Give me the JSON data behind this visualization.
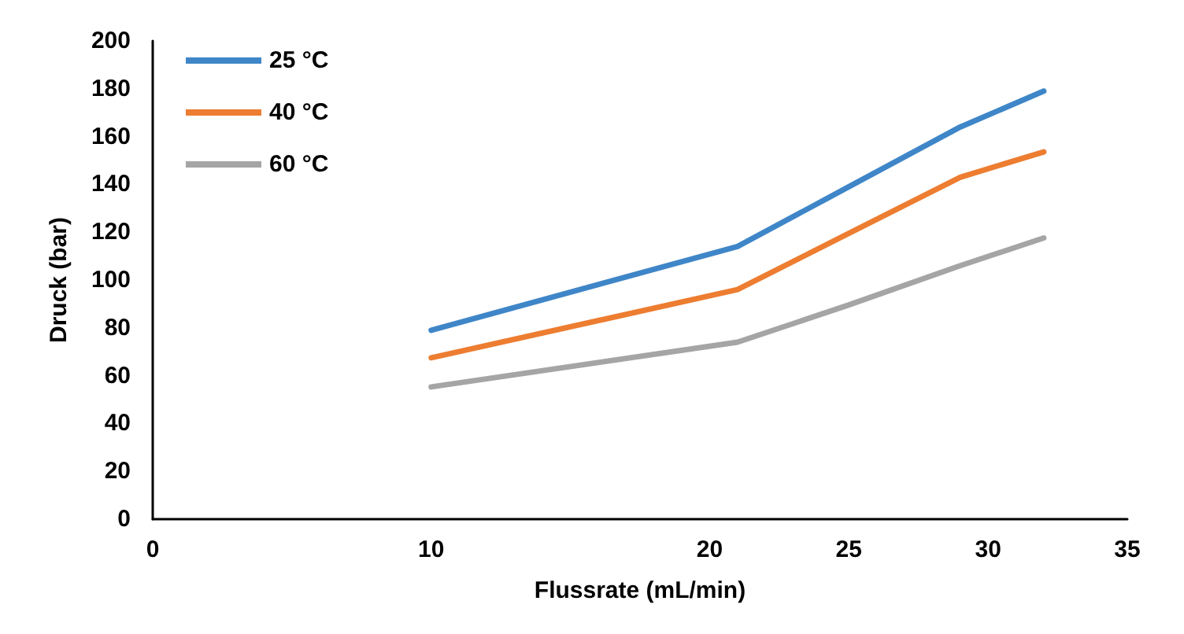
{
  "chart_data": {
    "type": "line",
    "xlabel": "Flussrate (mL/min)",
    "ylabel": "Druck (bar)",
    "x": [
      10,
      21,
      25,
      29,
      32
    ],
    "series": [
      {
        "name": "25 °C",
        "color": "#3f86c8",
        "values": [
          79,
          114,
          139,
          164,
          179
        ]
      },
      {
        "name": "40 °C",
        "color": "#ed7d31",
        "values": [
          67.5,
          96,
          119.5,
          143,
          153.6
        ]
      },
      {
        "name": "60 °C",
        "color": "#a5a5a5",
        "values": [
          55.3,
          74,
          89.6,
          106,
          117.6
        ]
      }
    ],
    "xlim": [
      0,
      35
    ],
    "xticks": [
      0,
      10,
      20,
      25,
      30,
      35
    ],
    "ylim": [
      0,
      200
    ],
    "yticks": [
      0,
      20,
      40,
      60,
      80,
      100,
      120,
      140,
      160,
      180,
      200
    ],
    "grid": false,
    "legend": "top left",
    "marker": "none",
    "line_style": "solid"
  }
}
